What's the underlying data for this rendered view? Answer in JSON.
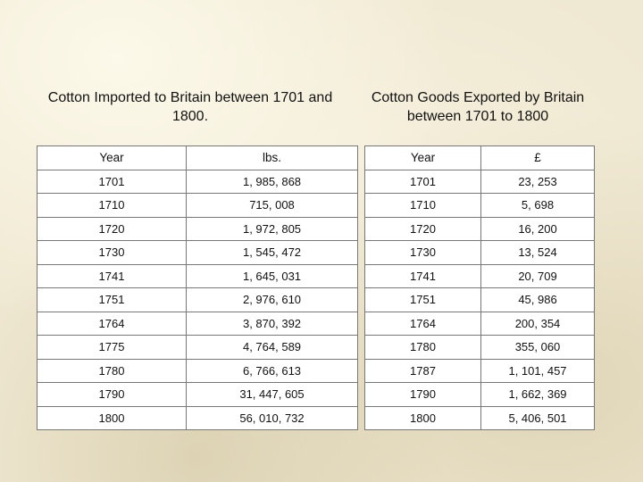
{
  "imports": {
    "title": "Cotton Imported to Britain between 1701 and 1800.",
    "columns": [
      "Year",
      "lbs."
    ],
    "rows": [
      [
        "1701",
        "1, 985, 868"
      ],
      [
        "1710",
        "715, 008"
      ],
      [
        "1720",
        "1, 972, 805"
      ],
      [
        "1730",
        "1, 545, 472"
      ],
      [
        "1741",
        "1, 645, 031"
      ],
      [
        "1751",
        "2, 976, 610"
      ],
      [
        "1764",
        "3, 870, 392"
      ],
      [
        "1775",
        "4, 764, 589"
      ],
      [
        "1780",
        "6, 766, 613"
      ],
      [
        "1790",
        "31, 447, 605"
      ],
      [
        "1800",
        "56, 010, 732"
      ]
    ]
  },
  "exports": {
    "title": "Cotton Goods Exported by Britain between 1701 to 1800",
    "columns": [
      "Year",
      "£"
    ],
    "rows": [
      [
        "1701",
        "23, 253"
      ],
      [
        "1710",
        "5, 698"
      ],
      [
        "1720",
        "16, 200"
      ],
      [
        "1730",
        "13, 524"
      ],
      [
        "1741",
        "20, 709"
      ],
      [
        "1751",
        "45, 986"
      ],
      [
        "1764",
        "200, 354"
      ],
      [
        "1780",
        "355, 060"
      ],
      [
        "1787",
        "1, 101, 457"
      ],
      [
        "1790",
        "1, 662, 369"
      ],
      [
        "1800",
        "5, 406, 501"
      ]
    ]
  }
}
